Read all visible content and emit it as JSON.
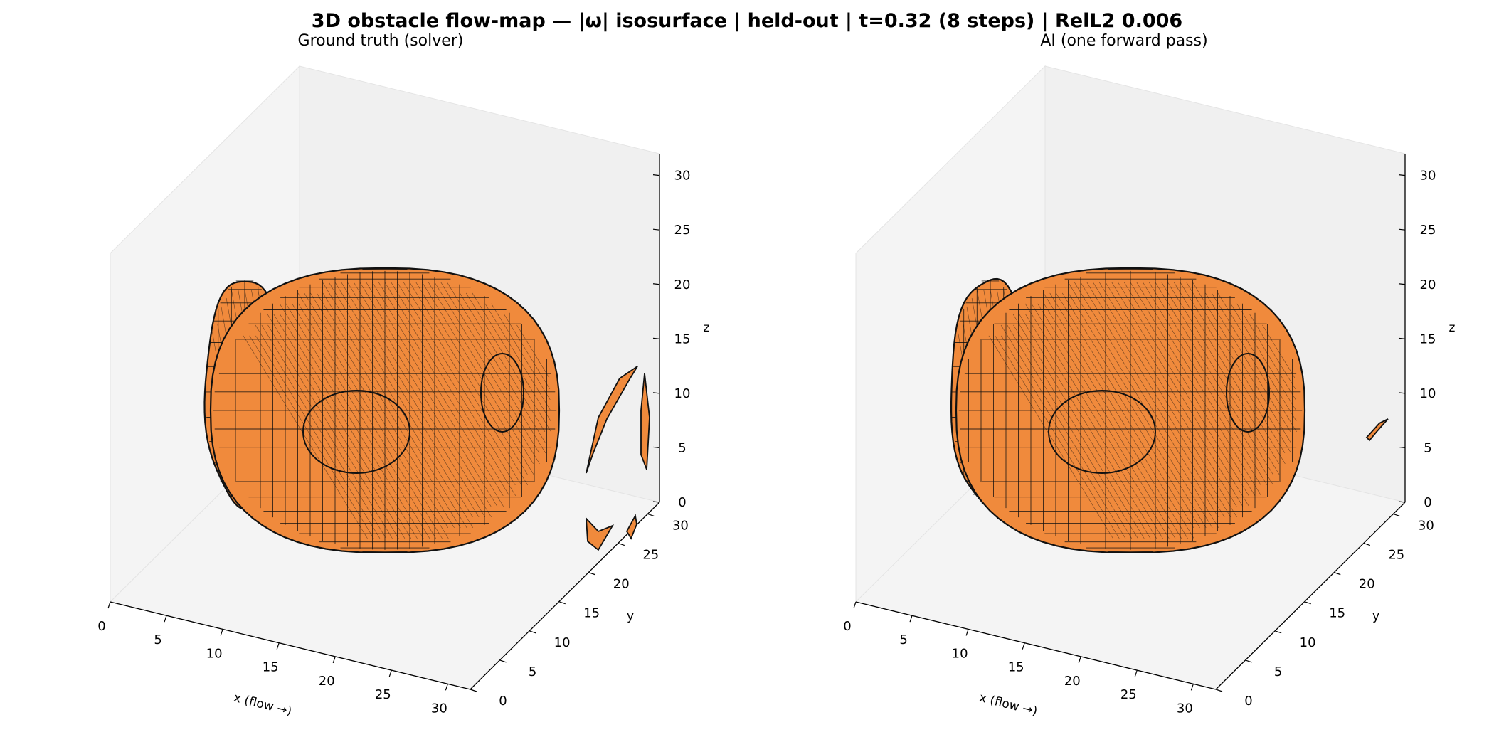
{
  "figure": {
    "title": "3D obstacle flow-map — |ω| isosurface | held-out | t=0.32 (8 steps) | RelL2 0.006"
  },
  "colors": {
    "surface": "#f08a3c",
    "edge": "#111111",
    "pane_back": "#f0f0f0",
    "pane_side": "#f4f4f4",
    "pane_floor": "#f4f4f4"
  },
  "chart_data": [
    {
      "type": "3d-isosurface",
      "subtitle": "Ground truth (solver)",
      "xlabel": "x (flow →)",
      "ylabel": "y",
      "zlabel": "z",
      "xlim": [
        0,
        32
      ],
      "ylim": [
        0,
        32
      ],
      "zlim": [
        0,
        32
      ],
      "xticks": [
        0,
        5,
        10,
        15,
        20,
        25,
        30
      ],
      "yticks": [
        0,
        5,
        10,
        15,
        20,
        25,
        30
      ],
      "zticks": [
        0,
        5,
        10,
        15,
        20,
        25,
        30
      ],
      "isosurface": {
        "main_body": {
          "center": [
            16,
            16,
            13
          ],
          "radii": [
            10,
            10,
            10
          ]
        },
        "upstream_cap": true,
        "wake_fragments": 4
      }
    },
    {
      "type": "3d-isosurface",
      "subtitle": "AI (one forward pass)",
      "xlabel": "x (flow →)",
      "ylabel": "y",
      "zlabel": "z",
      "xlim": [
        0,
        32
      ],
      "ylim": [
        0,
        32
      ],
      "zlim": [
        0,
        32
      ],
      "xticks": [
        0,
        5,
        10,
        15,
        20,
        25,
        30
      ],
      "yticks": [
        0,
        5,
        10,
        15,
        20,
        25,
        30
      ],
      "zticks": [
        0,
        5,
        10,
        15,
        20,
        25,
        30
      ],
      "isosurface": {
        "main_body": {
          "center": [
            16,
            16,
            13
          ],
          "radii": [
            10,
            10,
            10
          ]
        },
        "upstream_cap": true,
        "wake_fragments": 1
      }
    }
  ]
}
